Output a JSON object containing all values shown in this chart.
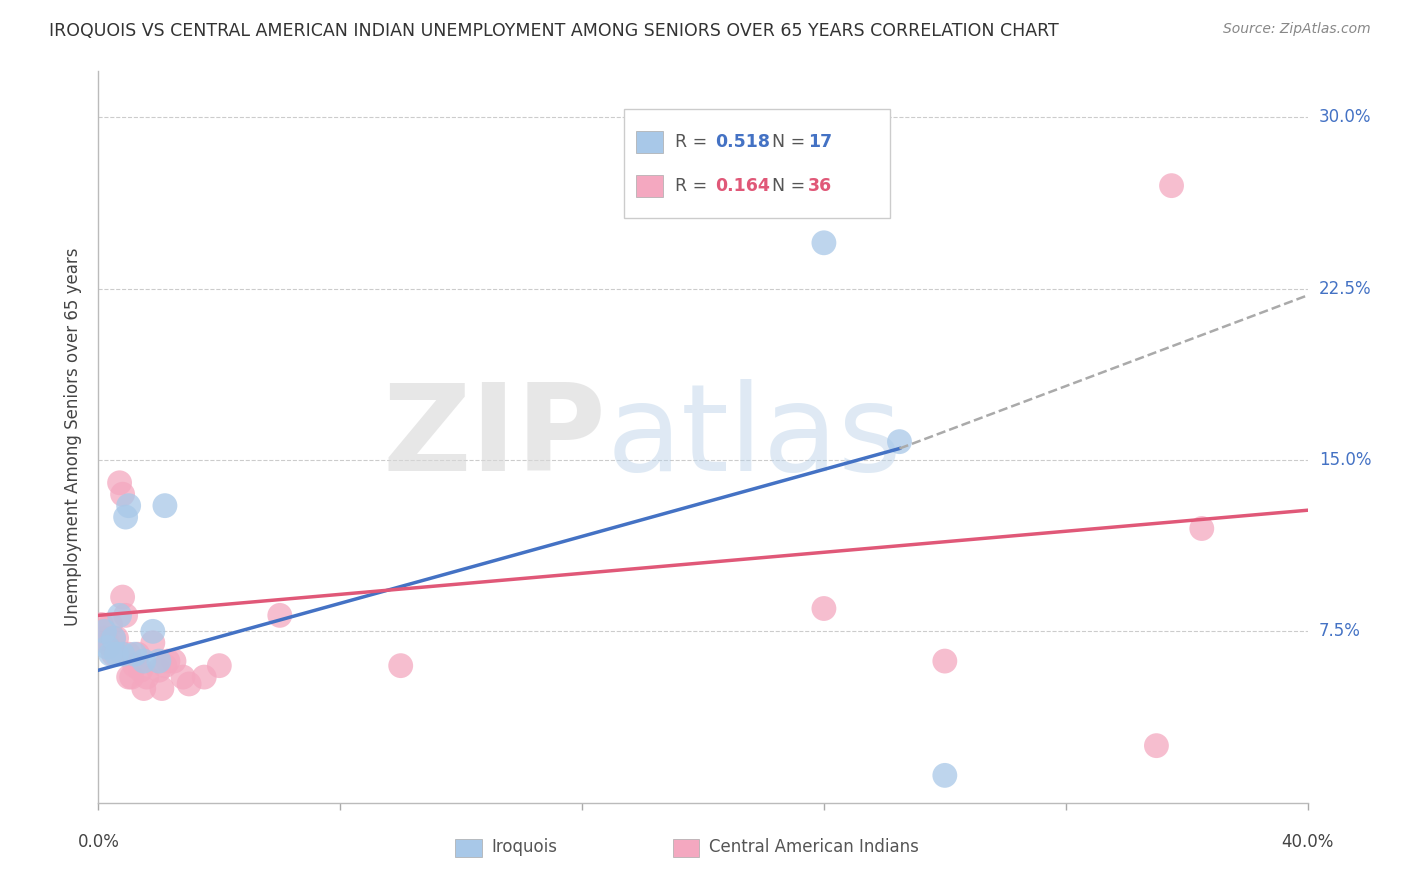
{
  "title": "IROQUOIS VS CENTRAL AMERICAN INDIAN UNEMPLOYMENT AMONG SENIORS OVER 65 YEARS CORRELATION CHART",
  "source": "Source: ZipAtlas.com",
  "ylabel": "Unemployment Among Seniors over 65 years",
  "iroquois_R": "0.518",
  "iroquois_N": "17",
  "caindian_R": "0.164",
  "caindian_N": "36",
  "iroquois_color": "#A8C8E8",
  "caindian_color": "#F4A8C0",
  "iroquois_line_color": "#4472C4",
  "caindian_line_color": "#E05878",
  "dashed_line_color": "#AAAAAA",
  "xlim": [
    0.0,
    0.4
  ],
  "ylim": [
    0.0,
    0.32
  ],
  "yticks": [
    0.075,
    0.15,
    0.225,
    0.3
  ],
  "ytick_labels": [
    "7.5%",
    "15.0%",
    "22.5%",
    "30.0%"
  ],
  "xtick_labels_show": [
    "0.0%",
    "40.0%"
  ],
  "background_color": "#FFFFFF",
  "grid_color": "#CCCCCC",
  "iroquois_x": [
    0.002,
    0.003,
    0.004,
    0.005,
    0.006,
    0.007,
    0.008,
    0.009,
    0.01,
    0.012,
    0.015,
    0.018,
    0.02,
    0.022,
    0.24,
    0.265,
    0.28
  ],
  "iroquois_y": [
    0.075,
    0.068,
    0.065,
    0.072,
    0.065,
    0.082,
    0.065,
    0.125,
    0.13,
    0.065,
    0.062,
    0.075,
    0.062,
    0.13,
    0.245,
    0.158,
    0.012
  ],
  "caindian_x": [
    0.001,
    0.002,
    0.003,
    0.004,
    0.005,
    0.005,
    0.006,
    0.007,
    0.008,
    0.008,
    0.009,
    0.01,
    0.01,
    0.011,
    0.012,
    0.013,
    0.014,
    0.015,
    0.016,
    0.018,
    0.02,
    0.021,
    0.022,
    0.023,
    0.025,
    0.028,
    0.03,
    0.035,
    0.04,
    0.06,
    0.1,
    0.24,
    0.28,
    0.35,
    0.355,
    0.365
  ],
  "caindian_y": [
    0.078,
    0.072,
    0.07,
    0.078,
    0.072,
    0.065,
    0.072,
    0.14,
    0.135,
    0.09,
    0.082,
    0.065,
    0.055,
    0.055,
    0.06,
    0.065,
    0.058,
    0.05,
    0.055,
    0.07,
    0.058,
    0.05,
    0.06,
    0.062,
    0.062,
    0.055,
    0.052,
    0.055,
    0.06,
    0.082,
    0.06,
    0.085,
    0.062,
    0.025,
    0.27,
    0.12
  ],
  "blue_line_x": [
    0.0,
    0.265
  ],
  "blue_line_y": [
    0.058,
    0.155
  ],
  "dash_line_x": [
    0.265,
    0.4
  ],
  "dash_line_y": [
    0.155,
    0.222
  ],
  "pink_line_x": [
    0.0,
    0.4
  ],
  "pink_line_y": [
    0.082,
    0.128
  ]
}
